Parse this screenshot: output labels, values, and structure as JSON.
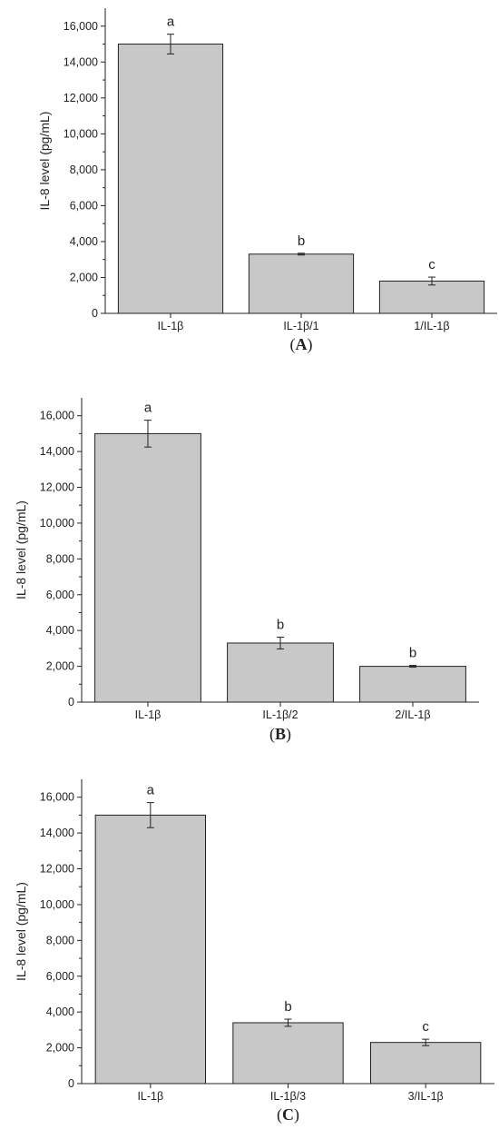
{
  "colors": {
    "bar_fill": "#c8c8c8",
    "bar_stroke": "#222222",
    "axis": "#222222",
    "text": "#222222"
  },
  "chart_data": [
    {
      "panel": "A",
      "type": "bar",
      "ylabel": "IL-8 level (pg/mL)",
      "ylim": [
        0,
        17000
      ],
      "yticks": [
        0,
        2000,
        4000,
        6000,
        8000,
        10000,
        12000,
        14000,
        16000
      ],
      "ytick_labels": [
        "0",
        "2,000",
        "4,000",
        "6,000",
        "8,000",
        "10,000",
        "12,000",
        "14,000",
        "16,000"
      ],
      "categories": [
        "IL-1β",
        "IL-1β/1",
        "1/IL-1β"
      ],
      "values": [
        15000,
        3300,
        1800
      ],
      "errors": [
        550,
        50,
        220
      ],
      "significance": [
        "a",
        "b",
        "c"
      ],
      "grid": false
    },
    {
      "panel": "B",
      "type": "bar",
      "ylabel": "IL-8 level (pg/mL)",
      "ylim": [
        0,
        17000
      ],
      "yticks": [
        0,
        2000,
        4000,
        6000,
        8000,
        10000,
        12000,
        14000,
        16000
      ],
      "ytick_labels": [
        "0",
        "2,000",
        "4,000",
        "6,000",
        "8,000",
        "10,000",
        "12,000",
        "14,000",
        "16,000"
      ],
      "categories": [
        "IL-1β",
        "IL-1β/2",
        "2/IL-1β"
      ],
      "values": [
        15000,
        3300,
        2000
      ],
      "errors": [
        750,
        330,
        50
      ],
      "significance": [
        "a",
        "b",
        "b"
      ],
      "grid": false
    },
    {
      "panel": "C",
      "type": "bar",
      "ylabel": "IL-8 level (pg/mL)",
      "ylim": [
        0,
        17000
      ],
      "yticks": [
        0,
        2000,
        4000,
        6000,
        8000,
        10000,
        12000,
        14000,
        16000
      ],
      "ytick_labels": [
        "0",
        "2,000",
        "4,000",
        "6,000",
        "8,000",
        "10,000",
        "12,000",
        "14,000",
        "16,000"
      ],
      "categories": [
        "IL-1β",
        "IL-1β/3",
        "3/IL-1β"
      ],
      "values": [
        15000,
        3400,
        2300
      ],
      "errors": [
        700,
        200,
        180
      ],
      "significance": [
        "a",
        "b",
        "c"
      ],
      "grid": false
    }
  ]
}
